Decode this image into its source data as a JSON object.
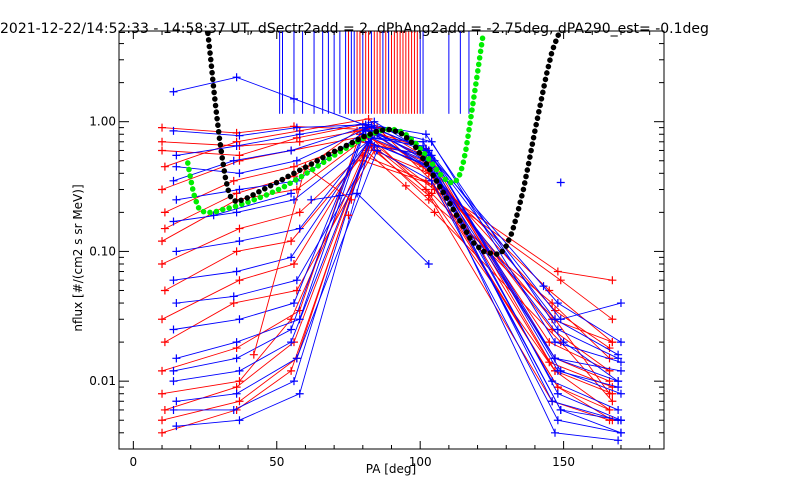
{
  "chart_data": {
    "type": "line",
    "title": "2021-12-22/14:52:33 - 14:58:37 UT, dSectr2add = 2, dPhAng2add = -2.75deg, dPA290_est=  -0.1deg",
    "xlabel": "PA [deg]",
    "ylabel": "nflux [#/(cm2 s sr MeV)]",
    "xlim": [
      -5,
      185
    ],
    "ylim": [
      0.003,
      5.0
    ],
    "yscale": "log",
    "grid": false,
    "x_ticks": [
      0,
      50,
      100,
      150
    ],
    "x_tick_labels": [
      "0",
      "50",
      "100",
      "150"
    ],
    "y_ticks": [
      0.01,
      0.1,
      1.0
    ],
    "y_tick_labels": [
      "0.01",
      "0.10",
      "1.00"
    ],
    "colors": {
      "series_a": "#ff0000",
      "series_b": "#0000ff",
      "fit_a": "#00ee00",
      "fit_b": "#000000",
      "axes": "#000000"
    },
    "series": [
      {
        "color": "#ff0000",
        "marker": "plus",
        "lines": [
          {
            "x": [
              10,
              36,
              56,
              81,
              102,
              147,
              167
            ],
            "y": [
              0.9,
              0.82,
              0.92,
              0.87,
              0.62,
              0.012,
              0.008
            ]
          },
          {
            "x": [
              10,
              37,
              57,
              80,
              103,
              145,
              166
            ],
            "y": [
              0.6,
              0.55,
              0.75,
              0.95,
              0.5,
              0.02,
              0.012
            ]
          },
          {
            "x": [
              11,
              36,
              58,
              82,
              104,
              148,
              166
            ],
            "y": [
              0.45,
              0.7,
              0.85,
              1.05,
              0.35,
              0.009,
              0.006
            ]
          },
          {
            "x": [
              10,
              37,
              55,
              84,
              101,
              146,
              167
            ],
            "y": [
              0.3,
              0.5,
              0.6,
              0.8,
              0.45,
              0.03,
              0.02
            ]
          },
          {
            "x": [
              11,
              35,
              56,
              79,
              102,
              147,
              166
            ],
            "y": [
              0.2,
              0.35,
              0.45,
              0.7,
              0.55,
              0.015,
              0.01
            ]
          },
          {
            "x": [
              10,
              36,
              57,
              81,
              105,
              149,
              167
            ],
            "y": [
              0.12,
              0.25,
              0.3,
              0.75,
              0.3,
              0.06,
              0.03
            ]
          },
          {
            "x": [
              10,
              37,
              58,
              83,
              103,
              146,
              166
            ],
            "y": [
              0.08,
              0.15,
              0.2,
              0.65,
              0.25,
              0.04,
              0.015
            ]
          },
          {
            "x": [
              11,
              36,
              55,
              80,
              102,
              148,
              167
            ],
            "y": [
              0.05,
              0.1,
              0.12,
              0.55,
              0.35,
              0.07,
              0.06
            ]
          },
          {
            "x": [
              10,
              37,
              56,
              82,
              104,
              147,
              166
            ],
            "y": [
              0.03,
              0.06,
              0.08,
              0.7,
              0.28,
              0.03,
              0.008
            ]
          },
          {
            "x": [
              11,
              35,
              57,
              84,
              103,
              145,
              167
            ],
            "y": [
              0.02,
              0.04,
              0.05,
              0.6,
              0.4,
              0.05,
              0.02
            ]
          },
          {
            "x": [
              10,
              36,
              58,
              79,
              101,
              146,
              166
            ],
            "y": [
              0.012,
              0.018,
              0.035,
              0.8,
              0.5,
              0.025,
              0.012
            ]
          },
          {
            "x": [
              10,
              37,
              55,
              81,
              105,
              149,
              167
            ],
            "y": [
              0.008,
              0.01,
              0.03,
              0.6,
              0.2,
              0.02,
              0.007
            ]
          },
          {
            "x": [
              11,
              36,
              56,
              83,
              102,
              147,
              166
            ],
            "y": [
              0.006,
              0.009,
              0.02,
              0.75,
              0.3,
              0.012,
              0.006
            ]
          },
          {
            "x": [
              10,
              37,
              57,
              80,
              104,
              148,
              167
            ],
            "y": [
              0.005,
              0.007,
              0.015,
              0.5,
              0.33,
              0.009,
              0.005
            ]
          },
          {
            "x": [
              10,
              36,
              55,
              82,
              103,
              146,
              166
            ],
            "y": [
              0.004,
              0.006,
              0.012,
              0.65,
              0.27,
              0.007,
              0.005
            ]
          },
          {
            "x": [
              11,
              36,
              56,
              78,
              103,
              147,
              166
            ],
            "y": [
              0.15,
              0.28,
              0.38,
              0.85,
              0.42,
              0.035,
              0.018
            ]
          },
          {
            "x": [
              10,
              37,
              58,
              85,
              101,
              145,
              167
            ],
            "y": [
              0.7,
              0.65,
              0.7,
              0.9,
              0.55,
              0.014,
              0.009
            ]
          }
        ]
      },
      {
        "color": "#0000ff",
        "marker": "plus",
        "lines": [
          {
            "x": [
              14,
              36,
              56,
              83,
              103,
              149,
              170
            ],
            "y": [
              1.7,
              2.2,
              1.5,
              0.9,
              0.6,
              0.03,
              0.04
            ]
          },
          {
            "x": [
              14,
              37,
              57,
              82,
              102,
              148,
              169
            ],
            "y": [
              0.85,
              0.78,
              0.9,
              0.95,
              0.8,
              0.025,
              0.015
            ]
          },
          {
            "x": [
              15,
              36,
              58,
              84,
              104,
              147,
              170
            ],
            "y": [
              0.55,
              0.65,
              0.8,
              1.0,
              0.55,
              0.015,
              0.012
            ]
          },
          {
            "x": [
              14,
              35,
              55,
              80,
              103,
              150,
              169
            ],
            "y": [
              0.35,
              0.5,
              0.6,
              0.9,
              0.45,
              0.02,
              0.01
            ]
          },
          {
            "x": [
              15,
              37,
              57,
              81,
              102,
              148,
              170
            ],
            "y": [
              0.25,
              0.3,
              0.35,
              0.85,
              0.6,
              0.04,
              0.02
            ]
          },
          {
            "x": [
              14,
              36,
              56,
              85,
              105,
              147,
              169
            ],
            "y": [
              0.17,
              0.2,
              0.25,
              0.8,
              0.5,
              0.03,
              0.016
            ]
          },
          {
            "x": [
              15,
              37,
              58,
              83,
              101,
              149,
              170
            ],
            "y": [
              0.1,
              0.12,
              0.15,
              0.75,
              0.7,
              0.012,
              0.008
            ]
          },
          {
            "x": [
              14,
              36,
              55,
              82,
              104,
              146,
              169
            ],
            "y": [
              0.06,
              0.07,
              0.09,
              0.7,
              0.45,
              0.01,
              0.006
            ]
          },
          {
            "x": [
              15,
              35,
              57,
              84,
              103,
              148,
              170
            ],
            "y": [
              0.04,
              0.045,
              0.06,
              0.65,
              0.55,
              0.008,
              0.005
            ]
          },
          {
            "x": [
              14,
              37,
              56,
              80,
              102,
              147,
              169
            ],
            "y": [
              0.025,
              0.03,
              0.04,
              0.8,
              0.5,
              0.015,
              0.01
            ]
          },
          {
            "x": [
              15,
              36,
              58,
              81,
              105,
              149,
              170
            ],
            "y": [
              0.015,
              0.02,
              0.03,
              0.9,
              0.4,
              0.006,
              0.004
            ]
          },
          {
            "x": [
              14,
              37,
              55,
              83,
              101,
              146,
              169
            ],
            "y": [
              0.01,
              0.012,
              0.02,
              0.75,
              0.65,
              0.007,
              0.005
            ]
          },
          {
            "x": [
              15,
              36,
              57,
              85,
              104,
              148,
              170
            ],
            "y": [
              0.007,
              0.008,
              0.015,
              0.6,
              0.35,
              0.005,
              0.004
            ]
          },
          {
            "x": [
              14,
              35,
              56,
              82,
              103,
              147,
              169
            ],
            "y": [
              0.006,
              0.006,
              0.01,
              0.7,
              0.45,
              0.004,
              0.0035
            ]
          },
          {
            "x": [
              15,
              37,
              58,
              84,
              102,
              149,
              170
            ],
            "y": [
              0.0045,
              0.005,
              0.008,
              0.85,
              0.5,
              0.006,
              0.005
            ]
          },
          {
            "x": [
              14,
              36,
              55,
              81,
              103,
              148,
              169
            ],
            "y": [
              0.012,
              0.015,
              0.025,
              0.95,
              0.6,
              0.012,
              0.009
            ]
          },
          {
            "x": [
              15,
              37,
              57,
              83,
              104,
              147,
              170
            ],
            "y": [
              0.45,
              0.4,
              0.5,
              0.92,
              0.7,
              0.02,
              0.014
            ]
          }
        ]
      }
    ],
    "extra_lines": [
      {
        "color": "#0000ff",
        "x": [
          62,
          78,
          103
        ],
        "y": [
          0.25,
          0.28,
          0.08
        ]
      },
      {
        "color": "#0000ff",
        "x": [
          28,
          55
        ],
        "y": [
          0.19,
          0.28
        ]
      },
      {
        "color": "#ff0000",
        "x": [
          42,
          60,
          76
        ],
        "y": [
          0.016,
          0.45,
          0.25
        ]
      }
    ],
    "extra_points": [
      {
        "color": "#0000ff",
        "x": 149,
        "y": 0.34
      },
      {
        "color": "#0000ff",
        "x": 143,
        "y": 0.054
      },
      {
        "color": "#ff0000",
        "x": 95,
        "y": 0.32
      },
      {
        "color": "#0000ff",
        "x": 72,
        "y": 0.27
      },
      {
        "color": "#ff0000",
        "x": 75,
        "y": 0.19
      }
    ],
    "vlines": {
      "y_from": 1.15,
      "y_to": 5.0,
      "red_x": [
        75,
        78,
        79,
        81,
        82,
        84,
        85,
        86,
        88,
        90,
        91,
        92,
        93,
        94,
        95,
        96,
        97,
        98,
        99
      ],
      "blue_x": [
        51,
        52,
        56,
        59,
        63,
        66,
        68,
        70,
        72,
        74,
        76,
        77,
        80,
        83,
        87,
        89,
        100,
        101,
        110,
        114,
        117
      ]
    },
    "fit_black": {
      "color": "#000000",
      "x": [
        26,
        27,
        28,
        29,
        30,
        31,
        32,
        33,
        34,
        36,
        38,
        40,
        44,
        50,
        56,
        62,
        68,
        74,
        80,
        86,
        90,
        94,
        98,
        102,
        106,
        110,
        114,
        118,
        122,
        126,
        128,
        130,
        132,
        134,
        136,
        138,
        140,
        142,
        144,
        146,
        148,
        149
      ],
      "y": [
        4.8,
        3.0,
        1.8,
        1.15,
        0.75,
        0.52,
        0.38,
        0.3,
        0.26,
        0.24,
        0.25,
        0.26,
        0.29,
        0.34,
        0.4,
        0.47,
        0.56,
        0.65,
        0.76,
        0.86,
        0.87,
        0.8,
        0.66,
        0.48,
        0.34,
        0.24,
        0.17,
        0.12,
        0.1,
        0.095,
        0.096,
        0.11,
        0.14,
        0.2,
        0.3,
        0.5,
        0.85,
        1.4,
        2.3,
        3.5,
        4.6,
        5.0
      ]
    },
    "fit_green": {
      "color": "#00ee00",
      "x": [
        19,
        20,
        21,
        22,
        23,
        25,
        28,
        31,
        35,
        40,
        46,
        52,
        58,
        64,
        70,
        76,
        82,
        86,
        90,
        94,
        98,
        102,
        106,
        108,
        110,
        112,
        113,
        114,
        115,
        116,
        117,
        118,
        119,
        120,
        121,
        122
      ],
      "y": [
        0.48,
        0.36,
        0.28,
        0.24,
        0.21,
        0.2,
        0.2,
        0.21,
        0.22,
        0.24,
        0.27,
        0.31,
        0.37,
        0.45,
        0.55,
        0.66,
        0.78,
        0.85,
        0.88,
        0.83,
        0.7,
        0.55,
        0.42,
        0.37,
        0.34,
        0.34,
        0.36,
        0.4,
        0.48,
        0.62,
        0.85,
        1.2,
        1.7,
        2.4,
        3.4,
        4.8
      ]
    }
  }
}
